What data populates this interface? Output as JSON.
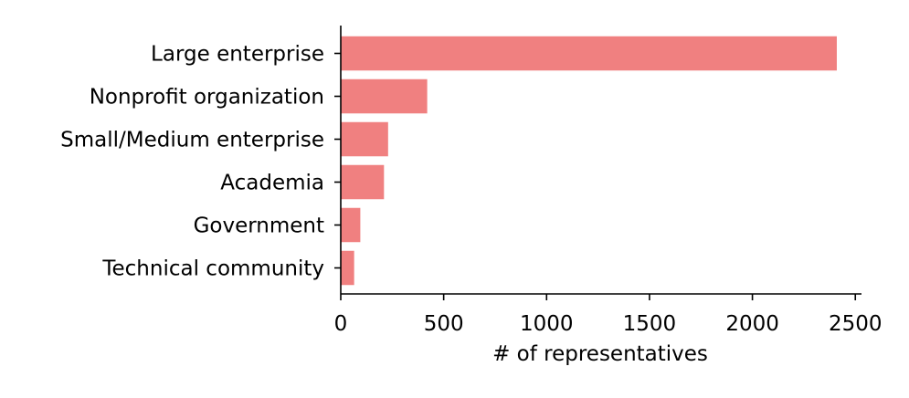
{
  "chart_data": {
    "type": "bar",
    "orientation": "horizontal",
    "title": "",
    "xlabel": "# of representatives",
    "ylabel": "",
    "categories": [
      "Large enterprise",
      "Nonprofit organization",
      "Small/Medium enterprise",
      "Academia",
      "Government",
      "Technical community"
    ],
    "values": [
      2410,
      420,
      230,
      210,
      95,
      65
    ],
    "xlim": [
      0,
      2530
    ],
    "xticks": [
      0,
      500,
      1000,
      1500,
      2000,
      2500
    ],
    "grid": false,
    "legend": "none",
    "bar_color": "#f08080"
  }
}
